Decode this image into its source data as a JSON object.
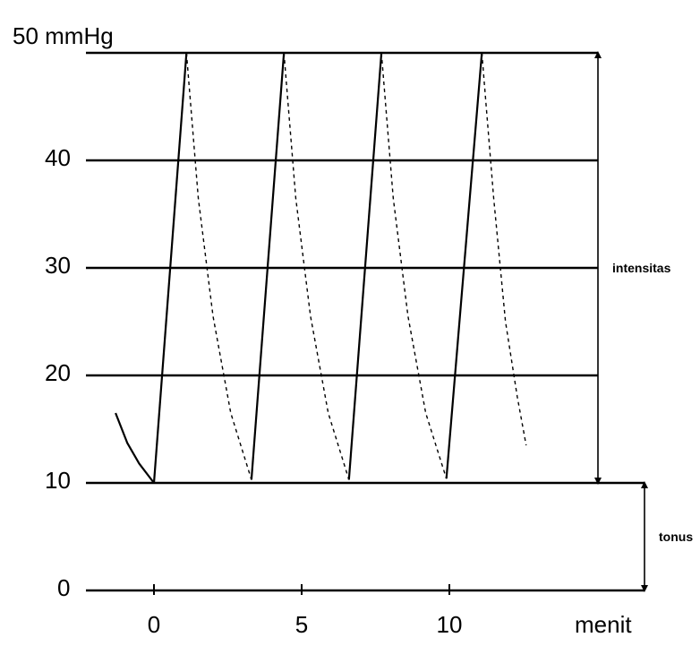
{
  "chart_data": {
    "type": "line",
    "title": "",
    "ylabel": "mmHg",
    "xlabel": "menit",
    "ylim": [
      0,
      50
    ],
    "xlim": [
      -2,
      13.5
    ],
    "y_ticks": [
      {
        "value": 0,
        "label": "0"
      },
      {
        "value": 10,
        "label": "10"
      },
      {
        "value": 20,
        "label": "20"
      },
      {
        "value": 30,
        "label": "30"
      },
      {
        "value": 40,
        "label": "40"
      },
      {
        "value": 50,
        "label": "50 mmHg"
      }
    ],
    "x_ticks": [
      {
        "value": 0,
        "label": "0"
      },
      {
        "value": 5,
        "label": "5"
      },
      {
        "value": 10,
        "label": "10"
      }
    ],
    "x_unit_label": "menit",
    "grid": true,
    "series": [
      {
        "style": "solid",
        "segments": [
          [
            [
              -1.3,
              16.5
            ],
            [
              -0.9,
              13.7
            ],
            [
              -0.5,
              11.8
            ],
            [
              0,
              10
            ]
          ],
          [
            [
              0,
              10
            ],
            [
              1.1,
              50
            ]
          ],
          [
            [
              3.3,
              10.3
            ],
            [
              4.4,
              50
            ]
          ],
          [
            [
              6.6,
              10.3
            ],
            [
              7.7,
              50
            ]
          ],
          [
            [
              9.9,
              10.4
            ],
            [
              11.1,
              50
            ]
          ]
        ]
      },
      {
        "style": "dashed",
        "segments": [
          [
            [
              1.1,
              50
            ],
            [
              1.5,
              36.5
            ],
            [
              2.0,
              25.5
            ],
            [
              2.6,
              16.5
            ],
            [
              3.3,
              10.3
            ]
          ],
          [
            [
              4.4,
              50
            ],
            [
              4.8,
              36.5
            ],
            [
              5.3,
              25.5
            ],
            [
              5.9,
              16.5
            ],
            [
              6.6,
              10.3
            ]
          ],
          [
            [
              7.7,
              50
            ],
            [
              8.1,
              36.5
            ],
            [
              8.6,
              25.5
            ],
            [
              9.2,
              16.5
            ],
            [
              9.9,
              10.4
            ]
          ],
          [
            [
              11.1,
              50
            ],
            [
              11.5,
              36.5
            ],
            [
              11.9,
              25
            ],
            [
              12.3,
              18
            ],
            [
              12.6,
              13.5
            ]
          ]
        ]
      }
    ],
    "annotations": [
      {
        "label": "intensitas",
        "from": 10,
        "to": 50
      },
      {
        "label": "tonus",
        "from": 0,
        "to": 10
      }
    ]
  }
}
